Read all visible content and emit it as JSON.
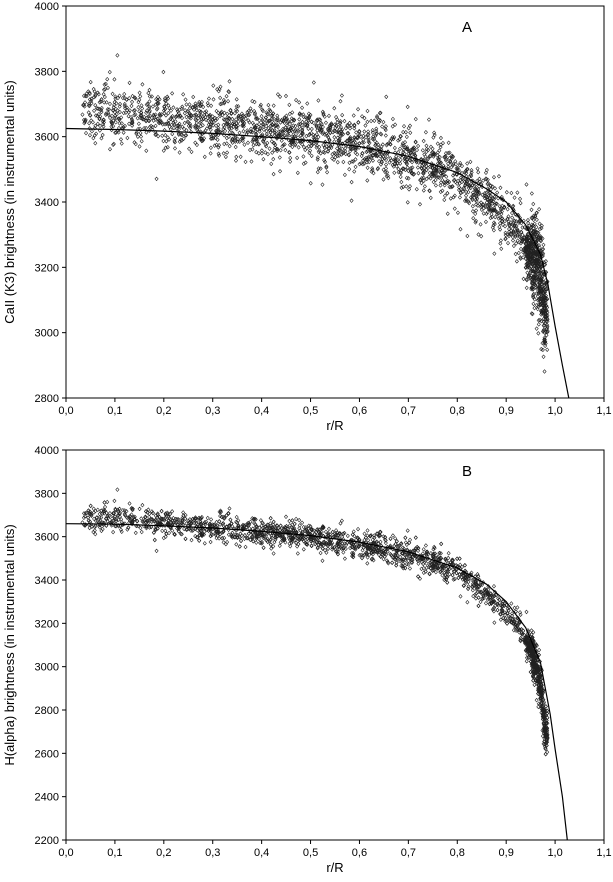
{
  "chart_data": [
    {
      "type": "scatter",
      "panel_label": "A",
      "xlabel": "r/R",
      "ylabel": "CaII (K3) brightness (in instrumental units)",
      "xlim": [
        0.0,
        1.1
      ],
      "ylim": [
        2800,
        4000
      ],
      "x_ticks": [
        "0,0",
        "0,1",
        "0,2",
        "0,3",
        "0,4",
        "0,5",
        "0,6",
        "0,7",
        "0,8",
        "0,9",
        "1,0",
        "1,1"
      ],
      "y_ticks": [
        "2800",
        "3000",
        "3200",
        "3400",
        "3600",
        "3800",
        "4000"
      ],
      "grid": false,
      "series": [
        {
          "marker": "open-diamond",
          "trend_points": [
            [
              0.03,
              3690
            ],
            [
              0.1,
              3670
            ],
            [
              0.2,
              3650
            ],
            [
              0.3,
              3640
            ],
            [
              0.4,
              3620
            ],
            [
              0.5,
              3600
            ],
            [
              0.6,
              3580
            ],
            [
              0.65,
              3560
            ],
            [
              0.7,
              3540
            ],
            [
              0.75,
              3510
            ],
            [
              0.8,
              3470
            ],
            [
              0.85,
              3420
            ],
            [
              0.9,
              3360
            ],
            [
              0.93,
              3300
            ],
            [
              0.95,
              3240
            ],
            [
              0.97,
              3180
            ],
            [
              0.98,
              3080
            ]
          ],
          "spread": 70
        }
      ],
      "fit_line": [
        [
          0.0,
          3625
        ],
        [
          0.1,
          3622
        ],
        [
          0.2,
          3617
        ],
        [
          0.3,
          3610
        ],
        [
          0.4,
          3600
        ],
        [
          0.5,
          3588
        ],
        [
          0.6,
          3570
        ],
        [
          0.7,
          3540
        ],
        [
          0.8,
          3490
        ],
        [
          0.86,
          3440
        ],
        [
          0.9,
          3400
        ],
        [
          0.94,
          3330
        ],
        [
          0.97,
          3240
        ],
        [
          0.985,
          3150
        ],
        [
          1.0,
          3020
        ],
        [
          1.015,
          2900
        ],
        [
          1.028,
          2800
        ]
      ]
    },
    {
      "type": "scatter",
      "panel_label": "B",
      "xlabel": "r/R",
      "ylabel": "H(alpha) brightness (in instrumental units)",
      "xlim": [
        0.0,
        1.1
      ],
      "ylim": [
        2200,
        4000
      ],
      "x_ticks": [
        "0,0",
        "0,1",
        "0,2",
        "0,3",
        "0,4",
        "0,5",
        "0,6",
        "0,7",
        "0,8",
        "0,9",
        "1,0",
        "1,1"
      ],
      "y_ticks": [
        "2200",
        "2400",
        "2600",
        "2800",
        "3000",
        "3200",
        "3400",
        "3600",
        "3800",
        "4000"
      ],
      "grid": false,
      "series": [
        {
          "marker": "open-diamond",
          "trend_points": [
            [
              0.03,
              3680
            ],
            [
              0.1,
              3690
            ],
            [
              0.2,
              3660
            ],
            [
              0.3,
              3640
            ],
            [
              0.4,
              3620
            ],
            [
              0.5,
              3600
            ],
            [
              0.6,
              3560
            ],
            [
              0.7,
              3520
            ],
            [
              0.8,
              3440
            ],
            [
              0.85,
              3360
            ],
            [
              0.9,
              3260
            ],
            [
              0.93,
              3170
            ],
            [
              0.95,
              3080
            ],
            [
              0.97,
              2920
            ],
            [
              0.98,
              2700
            ]
          ],
          "spread": 50
        }
      ],
      "fit_line": [
        [
          0.0,
          3660
        ],
        [
          0.1,
          3658
        ],
        [
          0.2,
          3650
        ],
        [
          0.3,
          3640
        ],
        [
          0.4,
          3625
        ],
        [
          0.5,
          3605
        ],
        [
          0.6,
          3575
        ],
        [
          0.7,
          3530
        ],
        [
          0.8,
          3455
        ],
        [
          0.86,
          3380
        ],
        [
          0.9,
          3300
        ],
        [
          0.94,
          3180
        ],
        [
          0.97,
          3020
        ],
        [
          0.99,
          2780
        ],
        [
          1.0,
          2620
        ],
        [
          1.015,
          2400
        ],
        [
          1.025,
          2200
        ]
      ]
    }
  ]
}
